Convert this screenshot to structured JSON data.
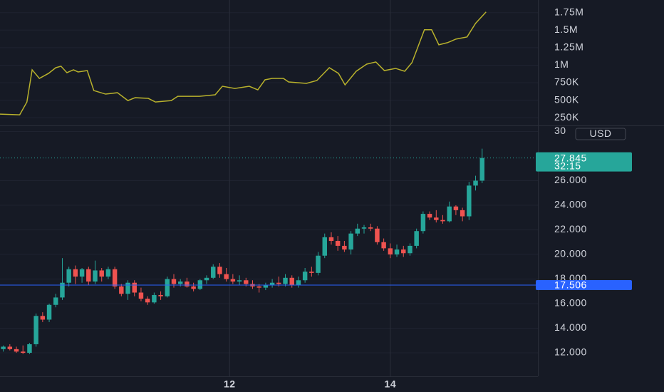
{
  "chart_data": [
    {
      "type": "line",
      "xlim": [
        -0.5,
        81.5
      ],
      "ylim": [
        140000,
        1930000
      ],
      "yticks": [
        {
          "value": 250000,
          "label": "250K"
        },
        {
          "value": 500000,
          "label": "500K"
        },
        {
          "value": 750000,
          "label": "750K"
        },
        {
          "value": 1000000,
          "label": "1M"
        },
        {
          "value": 1250000,
          "label": "1.25M"
        },
        {
          "value": 1500000,
          "label": "1.5M"
        },
        {
          "value": 1750000,
          "label": "1.75M"
        }
      ],
      "series": [
        {
          "color": "#b8b12c",
          "x": [
            -0.5,
            2.5,
            3.6,
            4.4,
            5.5,
            6.9,
            8.0,
            8.8,
            9.7,
            10.7,
            11.4,
            12.8,
            13.8,
            15.6,
            17.4,
            19.0,
            20.1,
            22.1,
            23.2,
            25.6,
            26.6,
            29.9,
            32.3,
            33.4,
            35.3,
            37.5,
            38.8,
            39.9,
            41.0,
            42.7,
            43.5,
            46.2,
            47.8,
            49.7,
            51.1,
            52.1,
            53.8,
            55.4,
            56.8,
            58.1,
            59.8,
            61.2,
            62.3,
            64.2,
            65.3,
            66.4,
            67.7,
            69.0,
            70.7,
            72.0,
            73.6
          ],
          "values": [
            301000,
            291000,
            474000,
            934000,
            811000,
            883000,
            964000,
            985000,
            893000,
            934000,
            903000,
            923000,
            638000,
            587000,
            607000,
            495000,
            536000,
            526000,
            474000,
            495000,
            556000,
            556000,
            577000,
            699000,
            668000,
            699000,
            648000,
            791000,
            811000,
            811000,
            760000,
            740000,
            781000,
            964000,
            883000,
            719000,
            913000,
            1015000,
            1046000,
            923000,
            954000,
            913000,
            1036000,
            1505000,
            1505000,
            1291000,
            1321000,
            1372000,
            1403000,
            1597000,
            1760000
          ]
        }
      ]
    },
    {
      "type": "candlestick",
      "xlim": [
        -0.5,
        81.5
      ],
      "xticks": [
        {
          "value": 34.5,
          "label": "12"
        },
        {
          "value": 59,
          "label": "14"
        }
      ],
      "ylim": [
        10.09,
        30.49
      ],
      "yticks": [
        {
          "value": 12,
          "label": "12.000"
        },
        {
          "value": 14,
          "label": "14.000"
        },
        {
          "value": 16,
          "label": "16.000"
        },
        {
          "value": 18,
          "label": "18.000"
        },
        {
          "value": 20,
          "label": "20.000"
        },
        {
          "value": 22,
          "label": "22.000"
        },
        {
          "value": 24,
          "label": "24.000"
        },
        {
          "value": 26,
          "label": "26.000"
        },
        30
      ],
      "up_color": "#26a69a",
      "down_color": "#ef5350",
      "currency": "USD",
      "last_price": {
        "value": 27.845,
        "countdown": "32:15",
        "color": "#26a69a"
      },
      "level": {
        "value": 17.506,
        "color": "#2962ff"
      },
      "open": [
        12.3,
        12.5,
        12.3,
        12.1,
        12.0,
        12.7,
        15.0,
        14.7,
        15.9,
        16.5,
        17.7,
        18.8,
        18.2,
        18.8,
        17.8,
        18.7,
        18.2,
        18.8,
        17.4,
        16.8,
        17.7,
        16.9,
        16.4,
        16.1,
        16.7,
        16.6,
        18.0,
        17.6,
        17.8,
        17.4,
        17.2,
        17.9,
        18.1,
        19.0,
        18.4,
        18.0,
        17.8,
        17.9,
        17.6,
        17.4,
        17.3,
        17.5,
        17.7,
        17.6,
        18.1,
        17.5,
        17.9,
        18.6,
        18.5,
        19.9,
        21.4,
        21.1,
        20.7,
        20.4,
        21.7,
        22.1,
        22.2,
        22.1,
        21.0,
        20.5,
        20.0,
        20.4,
        20.1,
        20.7,
        21.9,
        23.3,
        23.0,
        22.8,
        22.7,
        23.9,
        23.6,
        23.1,
        25.6,
        26.0
      ],
      "high": [
        12.6,
        12.7,
        12.5,
        12.6,
        12.8,
        15.2,
        15.3,
        16.0,
        16.8,
        19.7,
        19.0,
        19.1,
        18.9,
        19.0,
        19.5,
        18.9,
        19.0,
        19.0,
        17.6,
        17.9,
        17.9,
        17.3,
        16.6,
        16.9,
        17.0,
        18.2,
        18.4,
        18.0,
        18.1,
        17.7,
        18.0,
        18.3,
        19.2,
        19.3,
        18.9,
        18.4,
        18.3,
        18.1,
        17.9,
        17.6,
        17.7,
        18.0,
        18.2,
        18.4,
        18.3,
        18.2,
        18.9,
        19.0,
        20.2,
        21.7,
        21.8,
        21.5,
        21.1,
        21.9,
        22.5,
        22.4,
        22.5,
        22.3,
        21.3,
        20.9,
        20.8,
        20.7,
        20.9,
        22.1,
        23.5,
        23.5,
        23.6,
        23.2,
        24.3,
        24.0,
        23.8,
        25.9,
        26.4,
        28.6
      ],
      "low": [
        12.1,
        12.2,
        12.0,
        11.9,
        11.9,
        12.5,
        14.5,
        14.5,
        15.7,
        16.3,
        17.4,
        17.6,
        17.7,
        17.5,
        17.6,
        17.8,
        18.0,
        17.2,
        16.6,
        16.3,
        16.6,
        16.2,
        15.9,
        16.0,
        16.3,
        16.5,
        17.3,
        17.4,
        17.3,
        17.0,
        17.1,
        17.6,
        18.0,
        18.1,
        17.8,
        17.6,
        17.5,
        17.4,
        17.2,
        16.9,
        17.1,
        17.3,
        17.4,
        17.4,
        17.3,
        17.3,
        17.7,
        18.2,
        18.3,
        19.7,
        20.8,
        20.3,
        20.2,
        20.0,
        21.5,
        21.7,
        21.9,
        20.8,
        20.3,
        19.7,
        19.8,
        19.8,
        19.9,
        20.5,
        21.7,
        22.8,
        22.6,
        22.5,
        22.6,
        23.2,
        22.7,
        22.8,
        25.2,
        25.8
      ],
      "close": [
        12.5,
        12.3,
        12.1,
        12.0,
        12.7,
        15.0,
        14.7,
        15.9,
        16.5,
        17.7,
        18.8,
        18.2,
        18.8,
        17.8,
        18.7,
        18.2,
        18.8,
        17.4,
        16.8,
        17.7,
        16.9,
        16.4,
        16.1,
        16.7,
        16.6,
        18.0,
        17.6,
        17.8,
        17.4,
        17.2,
        17.9,
        18.1,
        19.0,
        18.4,
        18.0,
        17.8,
        17.9,
        17.6,
        17.4,
        17.3,
        17.5,
        17.7,
        17.6,
        18.1,
        17.5,
        17.9,
        18.6,
        18.5,
        19.9,
        21.4,
        21.1,
        20.7,
        20.4,
        21.7,
        22.1,
        22.2,
        22.1,
        21.0,
        20.5,
        20.0,
        20.4,
        20.1,
        20.7,
        21.9,
        23.3,
        23.0,
        22.8,
        22.7,
        23.9,
        23.6,
        23.1,
        25.6,
        26.0,
        27.845
      ]
    }
  ]
}
